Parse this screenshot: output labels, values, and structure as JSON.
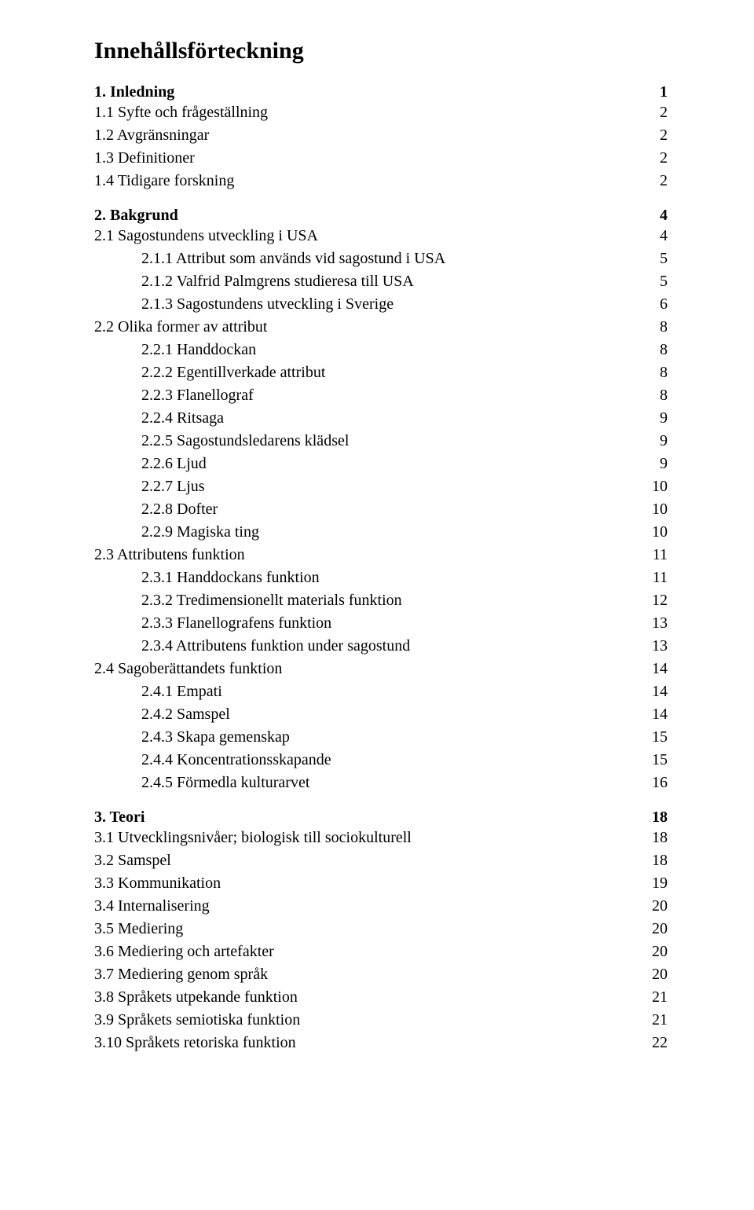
{
  "title": "Innehållsförteckning",
  "colors": {
    "background": "#ffffff",
    "text": "#000000"
  },
  "typography": {
    "family": "Times New Roman",
    "title_size_pt": 22,
    "head_size_pt": 15,
    "body_size_pt": 15
  },
  "sections": [
    {
      "head": {
        "label": "1. Inledning",
        "page": "1"
      },
      "items": [
        {
          "indent": 0,
          "label": "1.1 Syfte och frågeställning",
          "page": "2"
        },
        {
          "indent": 0,
          "label": "1.2 Avgränsningar",
          "page": "2"
        },
        {
          "indent": 0,
          "label": "1.3 Definitioner",
          "page": "2"
        },
        {
          "indent": 0,
          "label": "1.4 Tidigare forskning",
          "page": "2"
        }
      ]
    },
    {
      "head": {
        "label": "2. Bakgrund",
        "page": "4"
      },
      "items": [
        {
          "indent": 0,
          "label": "2.1 Sagostundens utveckling i USA",
          "page": "4"
        },
        {
          "indent": 1,
          "label": "2.1.1 Attribut som används vid sagostund i USA",
          "page": "5"
        },
        {
          "indent": 1,
          "label": "2.1.2 Valfrid Palmgrens studieresa till USA",
          "page": "5"
        },
        {
          "indent": 1,
          "label": "2.1.3 Sagostundens utveckling i Sverige",
          "page": "6"
        },
        {
          "indent": 0,
          "label": "2.2 Olika former av attribut",
          "page": "8"
        },
        {
          "indent": 1,
          "label": "2.2.1 Handdockan",
          "page": "8"
        },
        {
          "indent": 1,
          "label": "2.2.2 Egentillverkade attribut",
          "page": "8"
        },
        {
          "indent": 1,
          "label": "2.2.3 Flanellograf",
          "page": "8"
        },
        {
          "indent": 1,
          "label": "2.2.4 Ritsaga",
          "page": "9"
        },
        {
          "indent": 1,
          "label": "2.2.5 Sagostundsledarens klädsel",
          "page": "9"
        },
        {
          "indent": 1,
          "label": "2.2.6 Ljud",
          "page": "9"
        },
        {
          "indent": 1,
          "label": "2.2.7 Ljus",
          "page": "10"
        },
        {
          "indent": 1,
          "label": "2.2.8 Dofter",
          "page": "10"
        },
        {
          "indent": 1,
          "label": "2.2.9 Magiska ting",
          "page": "10"
        },
        {
          "indent": 0,
          "label": "2.3 Attributens funktion",
          "page": "11"
        },
        {
          "indent": 1,
          "label": "2.3.1 Handdockans funktion",
          "page": "11"
        },
        {
          "indent": 1,
          "label": "2.3.2 Tredimensionellt materials funktion",
          "page": "12"
        },
        {
          "indent": 1,
          "label": "2.3.3 Flanellografens funktion",
          "page": "13"
        },
        {
          "indent": 1,
          "label": "2.3.4 Attributens funktion under sagostund",
          "page": "13"
        },
        {
          "indent": 0,
          "label": "2.4 Sagoberättandets funktion",
          "page": "14"
        },
        {
          "indent": 1,
          "label": "2.4.1 Empati",
          "page": "14"
        },
        {
          "indent": 1,
          "label": "2.4.2 Samspel",
          "page": "14"
        },
        {
          "indent": 1,
          "label": "2.4.3 Skapa gemenskap",
          "page": "15"
        },
        {
          "indent": 1,
          "label": "2.4.4 Koncentrationsskapande",
          "page": "15"
        },
        {
          "indent": 1,
          "label": "2.4.5 Förmedla kulturarvet",
          "page": "16"
        }
      ]
    },
    {
      "head": {
        "label": "3. Teori",
        "page": "18"
      },
      "items": [
        {
          "indent": 0,
          "label": "3.1 Utvecklingsnivåer; biologisk till sociokulturell",
          "page": "18"
        },
        {
          "indent": 0,
          "label": "3.2 Samspel",
          "page": "18"
        },
        {
          "indent": 0,
          "label": "3.3 Kommunikation",
          "page": "19"
        },
        {
          "indent": 0,
          "label": "3.4 Internalisering",
          "page": "20"
        },
        {
          "indent": 0,
          "label": "3.5 Mediering",
          "page": "20"
        },
        {
          "indent": 0,
          "label": "3.6 Mediering och artefakter",
          "page": "20"
        },
        {
          "indent": 0,
          "label": "3.7 Mediering genom språk",
          "page": "20"
        },
        {
          "indent": 0,
          "label": "3.8 Språkets utpekande funktion",
          "page": "21"
        },
        {
          "indent": 0,
          "label": "3.9 Språkets semiotiska funktion",
          "page": "21"
        },
        {
          "indent": 0,
          "label": "3.10 Språkets retoriska funktion",
          "page": "22"
        }
      ]
    }
  ]
}
